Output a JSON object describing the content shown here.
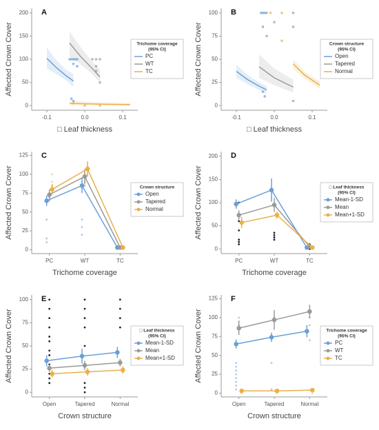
{
  "chart_data": [
    {
      "type": "line",
      "title": "A",
      "y_label": "Affected Crown Cover",
      "x_label": "□  Leaf thickness",
      "xlim": [
        -0.14,
        0.14
      ],
      "xticks": [
        -0.1,
        {
          "value": 0,
          "label": "0.0"
        },
        0.1
      ],
      "ylim": [
        -10,
        210
      ],
      "yticks": [
        0,
        50,
        100,
        150,
        200
      ],
      "legend_title": [
        "Trichome coverage",
        "(95% CI)"
      ],
      "series": [
        {
          "name": "PC",
          "color": "#6a9fd8",
          "x": [
            -0.1,
            -0.075,
            -0.05,
            -0.03
          ],
          "values": [
            102,
            82,
            65,
            53
          ],
          "lower": [
            80,
            68,
            55,
            40
          ],
          "upper": [
            125,
            98,
            78,
            68
          ],
          "points_x": [
            -0.04,
            -0.035,
            -0.03,
            -0.025,
            -0.02,
            -0.03,
            -0.02,
            -0.035,
            -0.03
          ],
          "points_y": [
            100,
            100,
            100,
            100,
            100,
            90,
            85,
            15,
            10
          ]
        },
        {
          "name": "WT",
          "color": "#9a9a9a",
          "x": [
            -0.04,
            -0.01,
            0.02,
            0.04
          ],
          "values": [
            135,
            105,
            80,
            62
          ],
          "lower": [
            105,
            88,
            68,
            50
          ],
          "upper": [
            160,
            125,
            95,
            78
          ],
          "points_x": [
            0.02,
            0.03,
            0.03,
            0.03,
            0.04,
            0.04
          ],
          "points_y": [
            100,
            100,
            85,
            75,
            100,
            50
          ]
        },
        {
          "name": "TC",
          "color": "#e8b04a",
          "x": [
            -0.04,
            0,
            0.05,
            0.12
          ],
          "values": [
            5,
            4,
            3,
            2
          ],
          "lower": [
            0,
            0,
            0,
            0
          ],
          "upper": [
            12,
            9,
            7,
            6
          ],
          "points_x": [
            -0.03,
            0,
            0.04
          ],
          "points_y": [
            5,
            0,
            0
          ]
        }
      ]
    },
    {
      "type": "line",
      "title": "B",
      "y_label": "Affected Crown Cover",
      "x_label": "□  Leaf thickness",
      "xlim": [
        -0.14,
        0.14
      ],
      "xticks": [
        -0.1,
        {
          "value": 0,
          "label": "0.0"
        },
        0.1
      ],
      "ylim": [
        -5,
        105
      ],
      "yticks": [
        0,
        25,
        50,
        75,
        100
      ],
      "legend_title": [
        "Crown structure",
        "(95% CI)"
      ],
      "series": [
        {
          "name": "Open",
          "color": "#6a9fd8",
          "x": [
            -0.1,
            -0.07,
            -0.04,
            -0.02
          ],
          "values": [
            37,
            28,
            21,
            17
          ],
          "lower": [
            30,
            23,
            17,
            13
          ],
          "upper": [
            44,
            33,
            25,
            21
          ],
          "points_x": [
            -0.035,
            -0.03,
            -0.025,
            -0.03,
            -0.02,
            -0.03,
            -0.025
          ],
          "points_y": [
            100,
            100,
            100,
            85,
            75,
            15,
            10
          ]
        },
        {
          "name": "Tapered",
          "color": "#9a9a9a",
          "x": [
            -0.04,
            0,
            0.05
          ],
          "values": [
            42,
            30,
            20
          ],
          "lower": [
            30,
            22,
            14
          ],
          "upper": [
            55,
            40,
            28
          ],
          "points_x": [
            -0.02,
            0,
            0.05,
            0.05,
            0.05
          ],
          "points_y": [
            100,
            90,
            100,
            85,
            5
          ]
        },
        {
          "name": "Normal",
          "color": "#e8b04a",
          "x": [
            0.05,
            0.08,
            0.12
          ],
          "values": [
            45,
            33,
            22
          ],
          "lower": [
            40,
            29,
            18
          ],
          "upper": [
            50,
            37,
            26
          ],
          "points_x": [
            -0.01,
            0.02,
            0.02
          ],
          "points_y": [
            100,
            100,
            70
          ]
        }
      ]
    },
    {
      "type": "errorbar",
      "title": "C",
      "y_label": "Affected Crown Cover",
      "x_label": "Trichome coverage",
      "categories": [
        "PC",
        "WT",
        "TC"
      ],
      "ylim": [
        -5,
        130
      ],
      "yticks": [
        0,
        25,
        50,
        75,
        100,
        125
      ],
      "legend_title": [
        "Crown structure"
      ],
      "series": [
        {
          "name": "Open",
          "color": "#6a9fd8",
          "values": [
            65,
            85,
            3
          ],
          "errors": [
            7,
            10,
            2
          ],
          "raw": [
            [
              40,
              15,
              10
            ],
            [
              40,
              30,
              20
            ],
            [
              3,
              2
            ]
          ]
        },
        {
          "name": "Tapered",
          "color": "#9a9a9a",
          "values": [
            73,
            97,
            3
          ],
          "errors": [
            7,
            10,
            2
          ],
          "raw": [
            [
              75,
              70,
              65
            ],
            [
              90,
              85
            ],
            [
              3
            ]
          ]
        },
        {
          "name": "Normal",
          "color": "#e8b04a",
          "values": [
            80,
            107,
            3
          ],
          "errors": [
            7,
            10,
            2
          ],
          "raw": [
            [
              100,
              90,
              85,
              75
            ],
            [
              110,
              100
            ],
            [
              3
            ]
          ]
        }
      ]
    },
    {
      "type": "errorbar",
      "title": "D",
      "y_label": "Affected Crown Cover",
      "x_label": "Trichome coverage",
      "categories": [
        "PC",
        "WT",
        "TC"
      ],
      "ylim": [
        -10,
        210
      ],
      "yticks": [
        0,
        50,
        100,
        150,
        200
      ],
      "legend_title": [
        "□  Leaf thickness",
        "(95% CI)"
      ],
      "raw_color": "#222",
      "raw_points": [
        [
          100,
          75,
          60,
          40,
          20,
          15,
          10
        ],
        [
          35,
          30,
          25,
          20
        ],
        [
          10,
          5,
          0
        ]
      ],
      "series": [
        {
          "name": "Mean-1-SD",
          "color": "#6a9fd8",
          "values": [
            97,
            127,
            3
          ],
          "errors": [
            10,
            25,
            3
          ]
        },
        {
          "name": "Mean",
          "color": "#9a9a9a",
          "values": [
            73,
            95,
            5
          ],
          "errors": [
            10,
            15,
            3
          ]
        },
        {
          "name": "Mean+1-SD",
          "color": "#e8b04a",
          "values": [
            57,
            73,
            3
          ],
          "errors": [
            12,
            8,
            3
          ]
        }
      ]
    },
    {
      "type": "errorbar",
      "title": "E",
      "y_label": "Affected Crown Cover",
      "x_label": "Crown structure",
      "categories": [
        "Open",
        "Tapered",
        "Normal"
      ],
      "ylim": [
        -5,
        105
      ],
      "yticks": [
        0,
        25,
        50,
        75,
        100
      ],
      "legend_title": [
        "□  Leaf thickness",
        "(95% CI)"
      ],
      "raw_color": "#222",
      "raw_points": [
        [
          100,
          90,
          80,
          70,
          60,
          55,
          45,
          40,
          30,
          25,
          20,
          15,
          10
        ],
        [
          100,
          90,
          80,
          70,
          50,
          10,
          5,
          0
        ],
        [
          100,
          90,
          80,
          70
        ]
      ],
      "series": [
        {
          "name": "Mean-1-SD",
          "color": "#6a9fd8",
          "values": [
            34,
            39,
            43
          ],
          "errors": [
            6,
            8,
            6
          ]
        },
        {
          "name": "Mean",
          "color": "#9a9a9a",
          "values": [
            26,
            29,
            32
          ],
          "errors": [
            4,
            5,
            4
          ]
        },
        {
          "name": "Mean+1-SD",
          "color": "#e8b04a",
          "values": [
            20,
            22,
            24
          ],
          "errors": [
            4,
            4,
            4
          ]
        }
      ]
    },
    {
      "type": "errorbar",
      "title": "F",
      "y_label": "Affected Crown Cover",
      "x_label": "Crown structure",
      "categories": [
        "Open",
        "Tapered",
        "Normal"
      ],
      "ylim": [
        -5,
        130
      ],
      "yticks": [
        0,
        25,
        50,
        75,
        100,
        125
      ],
      "legend_title": [
        "Trichome coverage",
        "(95% CI)"
      ],
      "series": [
        {
          "name": "PC",
          "color": "#6a9fd8",
          "values": [
            65,
            74,
            82
          ],
          "errors": [
            6,
            6,
            8
          ],
          "raw": [
            [
              40,
              35,
              30,
              25,
              20,
              15,
              10,
              5
            ],
            [
              40,
              5
            ],
            []
          ]
        },
        {
          "name": "WT",
          "color": "#9a9a9a",
          "values": [
            86,
            97,
            108
          ],
          "errors": [
            9,
            13,
            9
          ],
          "raw": [
            [
              100,
              95,
              90
            ],
            [
              100
            ],
            [
              100,
              90,
              70
            ]
          ]
        },
        {
          "name": "TC",
          "color": "#e8b04a",
          "values": [
            3,
            3,
            4
          ],
          "errors": [
            1,
            1,
            1
          ],
          "raw": [
            [
              0
            ],
            [
              0
            ],
            [
              0
            ]
          ]
        }
      ]
    }
  ]
}
